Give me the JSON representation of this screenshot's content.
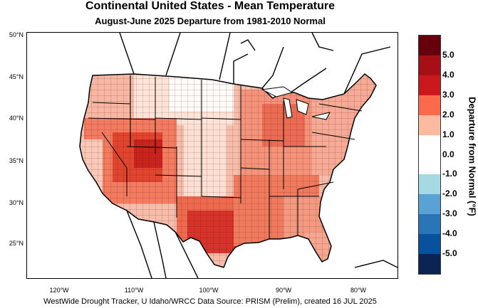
{
  "title": "Continental United States - Mean Temperature",
  "subtitle": "August-June 2025  Departure from 1981-2010 Normal",
  "source_text": "WestWide Drought Tracker, U Idaho/WRCC Data Source: PRISM (Prelim), created 16 JUL 2025",
  "legend_title": "Departure from Normal (°F)",
  "y_ticks": [
    "50°N",
    "45°N",
    "40°N",
    "35°N",
    "30°N",
    "25°N"
  ],
  "x_ticks": [
    "120°W",
    "110°W",
    "100°W",
    "90°W",
    "80°W"
  ],
  "legend": [
    {
      "label": "5.0",
      "color": "#67000d"
    },
    {
      "label": "4.0",
      "color": "#a50f15"
    },
    {
      "label": "3.0",
      "color": "#cb181d"
    },
    {
      "label": "2.0",
      "color": "#fb6a4a"
    },
    {
      "label": "1.0",
      "color": "#fcbba1"
    },
    {
      "label": "0.0",
      "color": "#ffffff"
    },
    {
      "label": "-1.0",
      "color": "#ffffff"
    },
    {
      "label": "-2.0",
      "color": "#a6dae3"
    },
    {
      "label": "-3.0",
      "color": "#5aa2d4"
    },
    {
      "label": "-4.0",
      "color": "#2b74b8"
    },
    {
      "label": "-5.0",
      "color": "#08519c"
    },
    {
      "label": "",
      "color": "#0b2454"
    }
  ]
}
